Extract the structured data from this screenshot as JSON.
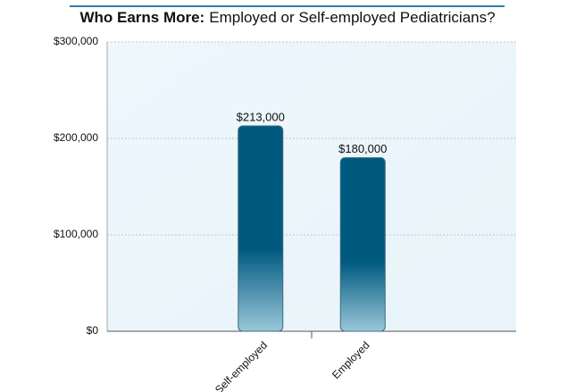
{
  "chart_data": {
    "type": "bar",
    "title_lead": "Who Earns More:",
    "title": "Employed or Self-employed Pediatricians?",
    "categories": [
      "Self-employed",
      "Employed"
    ],
    "values": [
      213000,
      180000
    ],
    "value_labels": [
      "$213,000",
      "$180,000"
    ],
    "color": "#005a80",
    "ylim": [
      0,
      300000
    ],
    "yticks": [
      {
        "value": 0,
        "label": "$0"
      },
      {
        "value": 100000,
        "label": "$100,000"
      },
      {
        "value": 200000,
        "label": "$200,000"
      },
      {
        "value": 300000,
        "label": "$300,000"
      }
    ],
    "grid": true
  }
}
